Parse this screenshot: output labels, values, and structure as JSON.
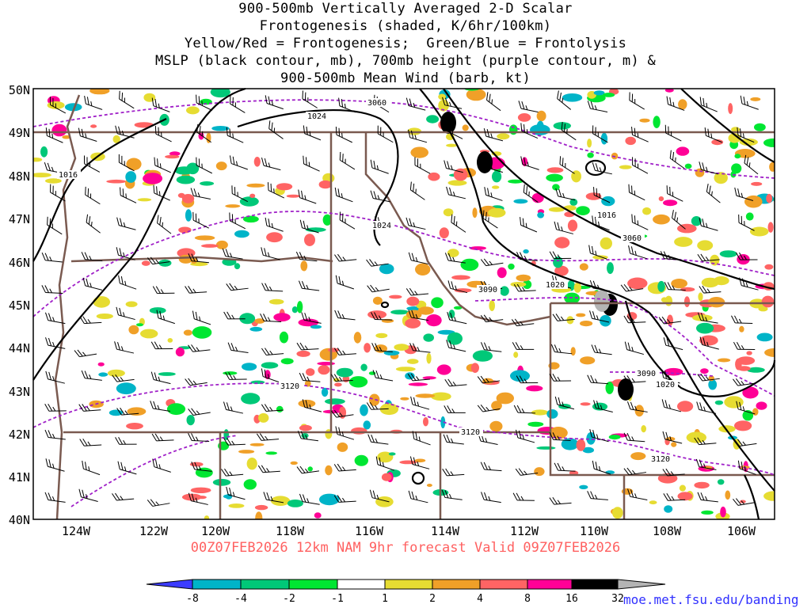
{
  "title_lines": [
    "900-500mb Vertically Averaged 2-D Scalar",
    "Frontogenesis (shaded, K/6hr/100km)",
    "Yellow/Red = Frontogenesis;  Green/Blue = Frontolysis",
    "MSLP (black contour, mb), 700mb height (purple contour, m) &",
    "900-500mb Mean Wind (barb, kt)"
  ],
  "valid_line": "00Z07FEB2026 12km NAM 9hr forecast Valid 09Z07FEB2026",
  "credit": "moe.met.fsu.edu/banding",
  "map": {
    "lat_labels": [
      "50N",
      "49N",
      "48N",
      "47N",
      "46N",
      "45N",
      "44N",
      "43N",
      "42N",
      "41N",
      "40N"
    ],
    "lon_labels": [
      "124W",
      "122W",
      "120W",
      "118W",
      "116W",
      "114W",
      "112W",
      "110W",
      "108W",
      "106W"
    ],
    "mslp_labels": [
      "1024",
      "1024",
      "1016",
      "1016",
      "1020",
      "1020"
    ],
    "height_labels": [
      "3060",
      "3060",
      "3090",
      "3090",
      "3120",
      "3120",
      "3120"
    ]
  },
  "colorbar": {
    "labels": [
      "-8",
      "-4",
      "-2",
      "-1",
      "1",
      "2",
      "4",
      "8",
      "16",
      "32"
    ],
    "colors": [
      "#3c3cff",
      "#00b4c8",
      "#00c878",
      "#00e632",
      "#ffffff",
      "#e6dc32",
      "#f0a028",
      "#ff6464",
      "#ff0096",
      "#000000",
      "#b4b4b4"
    ]
  },
  "colors": {
    "border": "#7a5a50",
    "mslp": "#000000",
    "height": "#a020c8",
    "title": "#000000",
    "valid": "#ff6060",
    "credit": "#3030ff"
  }
}
